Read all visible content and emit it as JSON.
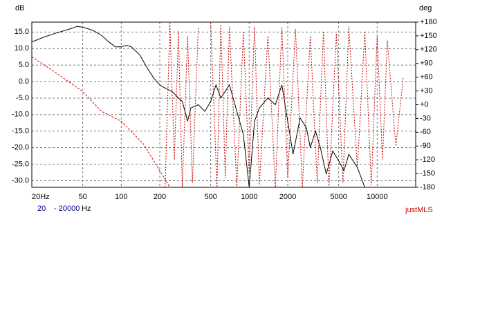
{
  "chart_data": {
    "type": "line",
    "y_label": "dB",
    "y2_label": "deg",
    "brand": "justMLS",
    "range_from": "20",
    "range_to": "- 20000",
    "range_unit": "Hz",
    "log_x": true,
    "grid": true,
    "xlim": [
      20,
      20000
    ],
    "xticks": [
      {
        "value": 20,
        "label": "20Hz"
      },
      50,
      100,
      200,
      500,
      1000,
      2000,
      5000,
      10000
    ],
    "ylim": [
      -32,
      18
    ],
    "yticks": [
      {
        "value": 15,
        "label": "15.0"
      },
      {
        "value": 10,
        "label": "10.0"
      },
      {
        "value": 5,
        "label": "5.0"
      },
      {
        "value": 0,
        "label": "0.0"
      },
      {
        "value": -5,
        "label": "-5.0"
      },
      {
        "value": -10,
        "label": "-10.0"
      },
      {
        "value": -15,
        "label": "-15.0"
      },
      {
        "value": -20,
        "label": "-20.0"
      },
      {
        "value": -25,
        "label": "-25.0"
      },
      {
        "value": -30,
        "label": "-30.0"
      }
    ],
    "y2lim": [
      -180,
      180
    ],
    "y2ticks": [
      {
        "value": 180,
        "label": "+180"
      },
      {
        "value": 150,
        "label": "+150"
      },
      {
        "value": 120,
        "label": "+120"
      },
      {
        "value": 90,
        "label": "+90"
      },
      {
        "value": 60,
        "label": "+60"
      },
      {
        "value": 30,
        "label": "+30"
      },
      {
        "value": 0,
        "label": "+0"
      },
      -30,
      -60,
      -90,
      -120,
      -150,
      -180
    ],
    "series": [
      {
        "color": "#000000",
        "style": "solid",
        "x": [
          20,
          25,
          30,
          40,
          45,
          50,
          60,
          70,
          80,
          90,
          100,
          110,
          120,
          140,
          160,
          180,
          200,
          220,
          250,
          280,
          300,
          330,
          350,
          400,
          450,
          500,
          550,
          600,
          700,
          800,
          900,
          1000,
          1100,
          1200,
          1400,
          1600,
          1800,
          2000,
          2200,
          2500,
          2800,
          3000,
          3300,
          3600,
          4000,
          4500,
          5000,
          5500,
          6000,
          7000,
          8000
        ],
        "values": [
          12,
          13.5,
          14.5,
          16,
          16.7,
          16.5,
          15.5,
          14,
          12,
          10.5,
          10.5,
          11,
          10.5,
          8,
          4,
          1,
          -1,
          -2,
          -3,
          -5,
          -6,
          -12,
          -8,
          -7,
          -9,
          -6,
          -1,
          -5,
          -1,
          -9,
          -16,
          -32,
          -12,
          -8,
          -5,
          -7,
          -1,
          -12,
          -22,
          -11,
          -14,
          -20,
          -15,
          -20,
          -28,
          -21,
          -24,
          -27,
          -22,
          -26,
          -32
        ]
      },
      {
        "color": "#cc0000",
        "style": "dashed",
        "x": [
          20,
          30,
          50,
          70,
          100,
          150,
          200,
          240
        ],
        "values": [
          7.5,
          3,
          -3,
          -9,
          -12,
          -19,
          -27,
          -32
        ]
      },
      {
        "color": "#cc0000",
        "style": "dotted",
        "axis": "y2",
        "x": [
          220,
          240,
          260,
          280,
          300,
          330,
          360,
          400,
          450,
          500,
          560,
          600,
          650,
          700,
          800,
          900,
          1000,
          1100,
          1200,
          1400,
          1600,
          1800,
          2000,
          2300,
          2600,
          3000,
          3400,
          3800,
          4200,
          4800,
          5400,
          6000,
          7000,
          8000,
          9000,
          10000,
          11000,
          12000,
          14000,
          16000
        ],
        "values": [
          -180,
          180,
          -120,
          160,
          -180,
          150,
          -170,
          170,
          null,
          180,
          -180,
          175,
          -160,
          170,
          -180,
          160,
          -150,
          170,
          -175,
          150,
          -180,
          170,
          -160,
          165,
          -180,
          150,
          -170,
          160,
          -180,
          155,
          -170,
          170,
          -140,
          160,
          -175,
          150,
          -120,
          140,
          -90,
          60
        ]
      }
    ]
  }
}
